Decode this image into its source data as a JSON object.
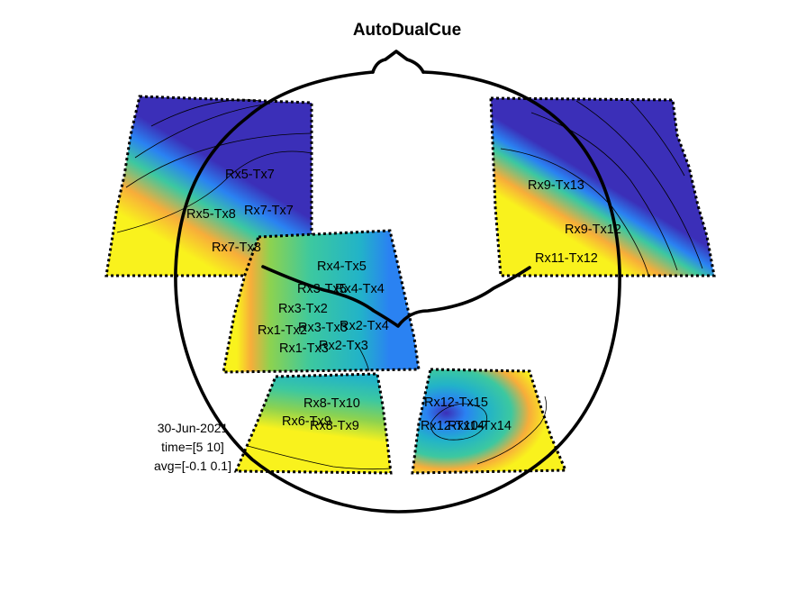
{
  "title": "AutoDualCue",
  "info": {
    "date": "30-Jun-2021",
    "time": "time=[5 10]",
    "avg": "avg=[-0.1 0.1]"
  },
  "colors": {
    "dark_blue": "#3b2fb8",
    "blue": "#2a82f2",
    "cyan": "#22b3c8",
    "teal": "#3cc8a0",
    "green": "#8cd250",
    "orange": "#f7ad3a",
    "yellow": "#f9f21d"
  },
  "channels": {
    "frontal_left": [
      "Rx5-Tx7",
      "Rx5-Tx8",
      "Rx7-Tx7",
      "Rx7-Tx8"
    ],
    "frontal_right": [
      "Rx9-Tx13",
      "Rx9-Tx12",
      "Rx11-Tx12"
    ],
    "central": [
      "Rx4-Tx5",
      "Rx3-Tx5",
      "Rx4-Tx4",
      "Rx3-Tx2",
      "Rx3-Tx3",
      "Rx2-Tx4",
      "Rx1-Tx2",
      "Rx1-Tx3",
      "Rx2-Tx3"
    ],
    "occipital_left": [
      "Rx8-Tx10",
      "Rx6-Tx9",
      "Rx8-Tx9"
    ],
    "occipital_right": [
      "Rx12-Tx15",
      "Rx12-Tx14",
      "Rx10-Tx14"
    ]
  }
}
